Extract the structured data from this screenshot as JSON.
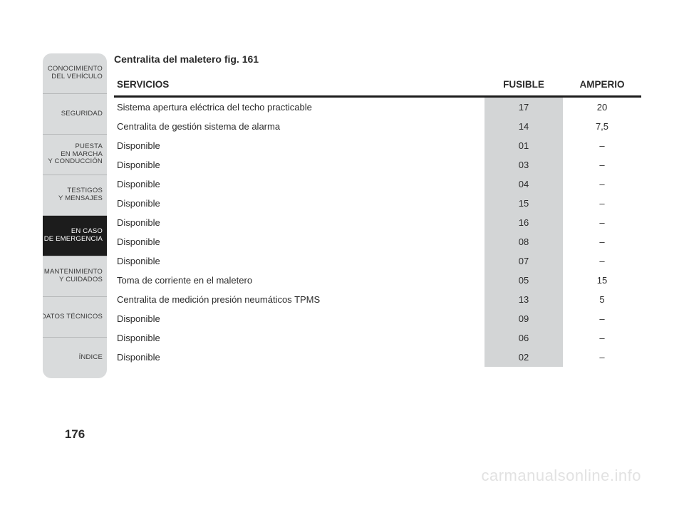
{
  "sidebar": {
    "tabs": [
      {
        "l1": "CONOCIMIENTO",
        "l2": "DEL VEHÍCULO",
        "active": false
      },
      {
        "l1": "SEGURIDAD",
        "l2": "",
        "active": false
      },
      {
        "l1": "PUESTA",
        "l2": "EN MARCHA",
        "l3": "Y CONDUCCIÓN",
        "active": false
      },
      {
        "l1": "TESTIGOS",
        "l2": "Y MENSAJES",
        "active": false
      },
      {
        "l1": "EN CASO",
        "l2": "DE EMERGENCIA",
        "active": true
      },
      {
        "l1": "MANTENIMIENTO",
        "l2": "Y CUIDADOS",
        "active": false
      },
      {
        "l1": "DATOS TÉCNICOS",
        "l2": "",
        "active": false
      },
      {
        "l1": "ÍNDICE",
        "l2": "",
        "active": false
      }
    ]
  },
  "title": "Centralita del maletero fig. 161",
  "table": {
    "headers": {
      "servicios": "SERVICIOS",
      "fusible": "FUSIBLE",
      "amperio": "AMPERIO"
    },
    "rows": [
      {
        "servicio": "Sistema apertura eléctrica del techo practicable",
        "fusible": "17",
        "amperio": "20"
      },
      {
        "servicio": "Centralita de gestión sistema de alarma",
        "fusible": "14",
        "amperio": "7,5"
      },
      {
        "servicio": "Disponible",
        "fusible": "01",
        "amperio": "–"
      },
      {
        "servicio": "Disponible",
        "fusible": "03",
        "amperio": "–"
      },
      {
        "servicio": "Disponible",
        "fusible": "04",
        "amperio": "–"
      },
      {
        "servicio": "Disponible",
        "fusible": "15",
        "amperio": "–"
      },
      {
        "servicio": "Disponible",
        "fusible": "16",
        "amperio": "–"
      },
      {
        "servicio": "Disponible",
        "fusible": "08",
        "amperio": "–"
      },
      {
        "servicio": "Disponible",
        "fusible": "07",
        "amperio": "–"
      },
      {
        "servicio": "Toma de corriente en el maletero",
        "fusible": "05",
        "amperio": "15"
      },
      {
        "servicio": "Centralita de medición presión neumáticos TPMS",
        "fusible": "13",
        "amperio": "5"
      },
      {
        "servicio": "Disponible",
        "fusible": "09",
        "amperio": "–"
      },
      {
        "servicio": "Disponible",
        "fusible": "06",
        "amperio": "–"
      },
      {
        "servicio": "Disponible",
        "fusible": "02",
        "amperio": "–"
      }
    ]
  },
  "page_number": "176",
  "watermark": "carmanualsonline.info",
  "colors": {
    "sidebar_bg": "#d9dbdc",
    "sidebar_active_bg": "#1c1c1c",
    "fusible_col_bg": "#d3d5d6",
    "header_rule": "#1c1c1c",
    "watermark": "#e2e2e2"
  }
}
